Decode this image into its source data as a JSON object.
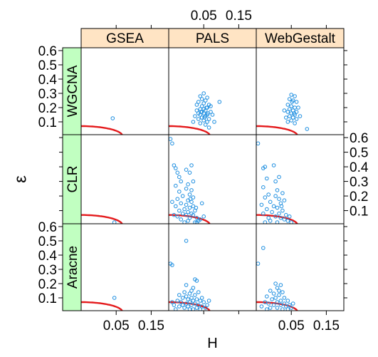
{
  "chart_data": {
    "type": "scatter",
    "layout": "lattice-3x3",
    "xlabel": "H",
    "ylabel": "ε",
    "xlim": [
      -0.05,
      0.2
    ],
    "ylim": [
      0.01,
      0.62
    ],
    "x_ticks": [
      0.05,
      0.15
    ],
    "x_tick_labels": [
      "0.05",
      "0.15"
    ],
    "y_ticks": [
      0.1,
      0.2,
      0.3,
      0.4,
      0.5,
      0.6
    ],
    "y_tick_labels": [
      "0.1",
      "0.2",
      "0.3",
      "0.4",
      "0.5",
      "0.6"
    ],
    "columns": [
      "GSEA",
      "PALS",
      "WebGestalt"
    ],
    "rows": [
      "WGCNA",
      "CLR",
      "Aracne"
    ],
    "colors": {
      "points": "#1f8fe0",
      "curve": "#e41a1c",
      "strip_top": "#ffe4c4",
      "strip_side": "#c1ffc1"
    },
    "threshold_curve": {
      "h0": 0.068,
      "e0": 0.07,
      "description_visible": false
    },
    "panels": [
      {
        "row": "WGCNA",
        "column": "GSEA",
        "points": [
          [
            0.04,
            0.125
          ]
        ]
      },
      {
        "row": "WGCNA",
        "column": "PALS",
        "points": [
          [
            0.04,
            0.28
          ],
          [
            0.05,
            0.3
          ],
          [
            0.06,
            0.27
          ],
          [
            0.045,
            0.26
          ],
          [
            0.055,
            0.25
          ],
          [
            0.035,
            0.24
          ],
          [
            0.05,
            0.23
          ],
          [
            0.065,
            0.22
          ],
          [
            0.045,
            0.21
          ],
          [
            0.06,
            0.2
          ],
          [
            0.04,
            0.19
          ],
          [
            0.05,
            0.19
          ],
          [
            0.03,
            0.18
          ],
          [
            0.055,
            0.18
          ],
          [
            0.045,
            0.17
          ],
          [
            0.07,
            0.17
          ],
          [
            0.035,
            0.16
          ],
          [
            0.05,
            0.16
          ],
          [
            0.06,
            0.15
          ],
          [
            0.04,
            0.15
          ],
          [
            0.055,
            0.14
          ],
          [
            0.045,
            0.13
          ],
          [
            0.065,
            0.12
          ],
          [
            0.035,
            0.12
          ],
          [
            0.05,
            0.11
          ],
          [
            0.06,
            0.1
          ],
          [
            0.04,
            0.09
          ],
          [
            0.055,
            0.08
          ],
          [
            0.02,
            0.1
          ],
          [
            0.075,
            0.15
          ],
          [
            0.03,
            0.22
          ],
          [
            0.07,
            0.21
          ],
          [
            0.095,
            0.24
          ],
          [
            0.065,
            0.06
          ],
          [
            0.08,
            0.1
          ],
          [
            0.025,
            0.14
          ],
          [
            0.058,
            0.2
          ],
          [
            0.042,
            0.17
          ],
          [
            0.052,
            0.13
          ],
          [
            0.062,
            0.16
          ]
        ]
      },
      {
        "row": "WGCNA",
        "column": "WebGestalt",
        "points": [
          [
            0.05,
            0.29
          ],
          [
            0.06,
            0.28
          ],
          [
            0.045,
            0.26
          ],
          [
            0.055,
            0.25
          ],
          [
            0.065,
            0.24
          ],
          [
            0.04,
            0.22
          ],
          [
            0.05,
            0.21
          ],
          [
            0.06,
            0.2
          ],
          [
            0.045,
            0.19
          ],
          [
            0.055,
            0.18
          ],
          [
            0.065,
            0.17
          ],
          [
            0.04,
            0.17
          ],
          [
            0.05,
            0.16
          ],
          [
            0.06,
            0.15
          ],
          [
            0.045,
            0.14
          ],
          [
            0.055,
            0.13
          ],
          [
            0.035,
            0.13
          ],
          [
            0.065,
            0.12
          ],
          [
            0.05,
            0.11
          ],
          [
            0.04,
            0.1
          ],
          [
            0.06,
            0.09
          ],
          [
            0.07,
            0.2
          ],
          [
            0.075,
            0.14
          ],
          [
            0.095,
            0.05
          ],
          [
            0.03,
            0.18
          ],
          [
            0.052,
            0.24
          ],
          [
            0.058,
            0.16
          ]
        ]
      },
      {
        "row": "CLR",
        "column": "GSEA",
        "points": [
          [
            0.045,
            0.02
          ]
        ]
      },
      {
        "row": "CLR",
        "column": "PALS",
        "points": [
          [
            -0.045,
            0.59
          ],
          [
            -0.04,
            0.56
          ],
          [
            -0.035,
            0.41
          ],
          [
            -0.03,
            0.39
          ],
          [
            -0.025,
            0.36
          ],
          [
            -0.02,
            0.33
          ],
          [
            0.0,
            0.38
          ],
          [
            0.015,
            0.41
          ],
          [
            0.01,
            0.36
          ],
          [
            -0.015,
            0.3
          ],
          [
            0.005,
            0.28
          ],
          [
            0.02,
            0.3
          ],
          [
            -0.03,
            0.27
          ],
          [
            0.0,
            0.25
          ],
          [
            0.015,
            0.24
          ],
          [
            -0.02,
            0.23
          ],
          [
            0.01,
            0.21
          ],
          [
            -0.01,
            0.2
          ],
          [
            0.02,
            0.19
          ],
          [
            -0.025,
            0.18
          ],
          [
            0.005,
            0.17
          ],
          [
            0.015,
            0.16
          ],
          [
            -0.015,
            0.15
          ],
          [
            0.0,
            0.14
          ],
          [
            0.02,
            0.13
          ],
          [
            -0.03,
            0.13
          ],
          [
            0.01,
            0.12
          ],
          [
            -0.005,
            0.11
          ],
          [
            0.025,
            0.1
          ],
          [
            -0.02,
            0.1
          ],
          [
            0.005,
            0.09
          ],
          [
            0.015,
            0.08
          ],
          [
            -0.01,
            0.08
          ],
          [
            0.0,
            0.07
          ],
          [
            0.02,
            0.07
          ],
          [
            -0.025,
            0.06
          ],
          [
            0.01,
            0.05
          ],
          [
            0.03,
            0.05
          ],
          [
            -0.015,
            0.04
          ],
          [
            0.005,
            0.03
          ],
          [
            0.035,
            0.03
          ],
          [
            -0.005,
            0.02
          ],
          [
            0.025,
            0.02
          ],
          [
            0.04,
            0.04
          ],
          [
            0.045,
            0.15
          ],
          [
            0.05,
            0.06
          ],
          [
            0.03,
            0.02
          ],
          [
            -0.04,
            0.16
          ],
          [
            -0.035,
            0.07
          ],
          [
            0.012,
            0.18
          ],
          [
            0.028,
            0.12
          ]
        ]
      },
      {
        "row": "CLR",
        "column": "WebGestalt",
        "points": [
          [
            -0.045,
            0.56
          ],
          [
            -0.03,
            0.39
          ],
          [
            -0.025,
            0.4
          ],
          [
            0.0,
            0.41
          ],
          [
            0.015,
            0.33
          ],
          [
            -0.02,
            0.32
          ],
          [
            0.005,
            0.3
          ],
          [
            -0.03,
            0.26
          ],
          [
            0.01,
            0.24
          ],
          [
            0.025,
            0.22
          ],
          [
            -0.015,
            0.21
          ],
          [
            0.005,
            0.2
          ],
          [
            -0.025,
            0.19
          ],
          [
            0.015,
            0.18
          ],
          [
            0.03,
            0.17
          ],
          [
            -0.01,
            0.16
          ],
          [
            0.02,
            0.15
          ],
          [
            -0.035,
            0.14
          ],
          [
            0.0,
            0.13
          ],
          [
            0.01,
            0.12
          ],
          [
            -0.02,
            0.11
          ],
          [
            0.025,
            0.1
          ],
          [
            -0.005,
            0.09
          ],
          [
            0.015,
            0.08
          ],
          [
            -0.03,
            0.08
          ],
          [
            0.035,
            0.07
          ],
          [
            0.005,
            0.06
          ],
          [
            -0.015,
            0.05
          ],
          [
            0.02,
            0.05
          ],
          [
            0.03,
            0.04
          ],
          [
            -0.01,
            0.03
          ],
          [
            0.04,
            0.03
          ],
          [
            0.01,
            0.02
          ],
          [
            -0.025,
            0.02
          ],
          [
            0.045,
            0.06
          ],
          [
            0.05,
            0.02
          ],
          [
            0.022,
            0.13
          ]
        ]
      },
      {
        "row": "Aracne",
        "column": "GSEA",
        "points": [
          [
            0.045,
            0.1
          ]
        ]
      },
      {
        "row": "Aracne",
        "column": "PALS",
        "points": [
          [
            -0.045,
            0.34
          ],
          [
            -0.04,
            0.33
          ],
          [
            0.0,
            0.5
          ],
          [
            0.025,
            0.23
          ],
          [
            0.03,
            0.22
          ],
          [
            0.0,
            0.19
          ],
          [
            0.02,
            0.17
          ],
          [
            0.015,
            0.15
          ],
          [
            -0.005,
            0.14
          ],
          [
            0.035,
            0.14
          ],
          [
            0.01,
            0.13
          ],
          [
            -0.02,
            0.12
          ],
          [
            0.025,
            0.12
          ],
          [
            0.0,
            0.11
          ],
          [
            0.015,
            0.1
          ],
          [
            -0.01,
            0.1
          ],
          [
            0.03,
            0.09
          ],
          [
            0.005,
            0.09
          ],
          [
            -0.025,
            0.08
          ],
          [
            0.02,
            0.08
          ],
          [
            0.04,
            0.08
          ],
          [
            0.01,
            0.07
          ],
          [
            -0.015,
            0.07
          ],
          [
            0.05,
            0.07
          ],
          [
            0.0,
            0.06
          ],
          [
            0.025,
            0.06
          ],
          [
            -0.035,
            0.05
          ],
          [
            0.035,
            0.05
          ],
          [
            0.015,
            0.05
          ],
          [
            0.045,
            0.04
          ],
          [
            -0.02,
            0.04
          ],
          [
            0.005,
            0.04
          ],
          [
            0.03,
            0.03
          ],
          [
            -0.005,
            0.03
          ],
          [
            0.055,
            0.03
          ],
          [
            0.02,
            0.02
          ],
          [
            -0.03,
            0.02
          ],
          [
            0.04,
            0.02
          ],
          [
            0.01,
            0.02
          ],
          [
            -0.04,
            0.07
          ],
          [
            0.06,
            0.05
          ],
          [
            0.065,
            0.08
          ],
          [
            -0.01,
            0.05
          ],
          [
            0.045,
            0.1
          ]
        ]
      },
      {
        "row": "Aracne",
        "column": "WebGestalt",
        "points": [
          [
            -0.045,
            0.34
          ],
          [
            -0.03,
            0.45
          ],
          [
            0.005,
            0.2
          ],
          [
            0.02,
            0.19
          ],
          [
            0.01,
            0.17
          ],
          [
            -0.01,
            0.15
          ],
          [
            0.025,
            0.14
          ],
          [
            0.0,
            0.13
          ],
          [
            0.015,
            0.12
          ],
          [
            -0.02,
            0.11
          ],
          [
            0.03,
            0.1
          ],
          [
            0.005,
            0.1
          ],
          [
            -0.005,
            0.09
          ],
          [
            0.02,
            0.08
          ],
          [
            0.04,
            0.08
          ],
          [
            -0.025,
            0.07
          ],
          [
            0.01,
            0.07
          ],
          [
            0.03,
            0.06
          ],
          [
            -0.015,
            0.06
          ],
          [
            0.045,
            0.05
          ],
          [
            0.0,
            0.05
          ],
          [
            0.02,
            0.05
          ],
          [
            -0.035,
            0.04
          ],
          [
            0.035,
            0.04
          ],
          [
            0.01,
            0.03
          ],
          [
            -0.01,
            0.03
          ],
          [
            0.05,
            0.03
          ],
          [
            0.025,
            0.02
          ],
          [
            -0.02,
            0.02
          ],
          [
            0.04,
            0.02
          ],
          [
            0.055,
            0.06
          ],
          [
            0.015,
            0.15
          ]
        ]
      }
    ]
  }
}
